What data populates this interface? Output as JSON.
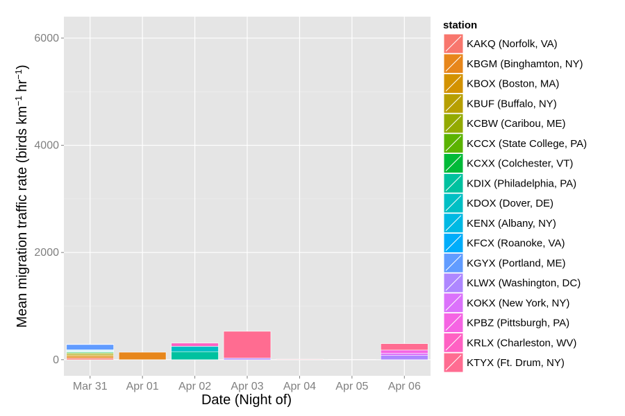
{
  "chart_data": {
    "type": "bar",
    "stacked": true,
    "xlabel": "Date (Night of)",
    "ylabel": {
      "prefix": "Mean migration traffic rate (birds km",
      "sup1": "−1",
      "middle": " hr",
      "sup2": "−1",
      "suffix": ")"
    },
    "ylim": [
      -300,
      6400
    ],
    "yticks": [
      0,
      2000,
      4000,
      6000
    ],
    "grid": true,
    "legend_position": "right",
    "categories": [
      "Mar 31",
      "Apr 01",
      "Apr 02",
      "Apr 03",
      "Apr 04",
      "Apr 05",
      "Apr 06"
    ],
    "legend": {
      "title": "station",
      "entries": [
        {
          "label": "KAKQ (Norfolk, VA)",
          "color": "#F8766D"
        },
        {
          "label": "KBGM (Binghamton, NY)",
          "color": "#E7861B"
        },
        {
          "label": "KBOX (Boston, MA)",
          "color": "#D39200"
        },
        {
          "label": "KBUF (Buffalo, NY)",
          "color": "#B79F00"
        },
        {
          "label": "KCBW (Caribou, ME)",
          "color": "#93AA00"
        },
        {
          "label": "KCCX (State College, PA)",
          "color": "#5BB300"
        },
        {
          "label": "KCXX (Colchester, VT)",
          "color": "#00BA38"
        },
        {
          "label": "KDIX (Philadelphia, PA)",
          "color": "#00C19F"
        },
        {
          "label": "KDOX (Dover, DE)",
          "color": "#00BFC4"
        },
        {
          "label": "KENX (Albany, NY)",
          "color": "#00B9E3"
        },
        {
          "label": "KFCX (Roanoke, VA)",
          "color": "#00ADFA"
        },
        {
          "label": "KGYX (Portland, ME)",
          "color": "#619CFF"
        },
        {
          "label": "KLWX (Washington, DC)",
          "color": "#AE87FF"
        },
        {
          "label": "KOKX (New York, NY)",
          "color": "#DB72FB"
        },
        {
          "label": "KPBZ (Pittsburgh, PA)",
          "color": "#F564E3"
        },
        {
          "label": "KRLX (Charleston, WV)",
          "color": "#FF61C3"
        },
        {
          "label": "KTYX (Ft. Drum, NY)",
          "color": "#FF6C91"
        }
      ]
    },
    "series": [
      {
        "name": "KAKQ (Norfolk, VA)",
        "color": "#F8766D",
        "values": [
          30,
          0,
          0,
          0,
          0,
          0,
          0
        ]
      },
      {
        "name": "KBGM (Binghamton, NY)",
        "color": "#E7861B",
        "values": [
          30,
          140,
          0,
          0,
          0,
          0,
          0
        ]
      },
      {
        "name": "KBOX (Boston, MA)",
        "color": "#D39200",
        "values": [
          20,
          0,
          0,
          0,
          0,
          0,
          0
        ]
      },
      {
        "name": "KBUF (Buffalo, NY)",
        "color": "#B79F00",
        "values": [
          20,
          0,
          0,
          0,
          0,
          0,
          0
        ]
      },
      {
        "name": "KCBW (Caribou, ME)",
        "color": "#93AA00",
        "values": [
          20,
          0,
          0,
          0,
          0,
          0,
          0
        ]
      },
      {
        "name": "KCCX (State College, PA)",
        "color": "#5BB300",
        "values": [
          10,
          0,
          0,
          0,
          0,
          0,
          0
        ]
      },
      {
        "name": "KCXX (Colchester, VT)",
        "color": "#00BA38",
        "values": [
          15,
          0,
          0,
          0,
          0,
          0,
          0
        ]
      },
      {
        "name": "KDIX (Philadelphia, PA)",
        "color": "#00C19F",
        "values": [
          10,
          0,
          150,
          0,
          0,
          0,
          0
        ]
      },
      {
        "name": "KDOX (Dover, DE)",
        "color": "#00BFC4",
        "values": [
          10,
          0,
          100,
          0,
          0,
          0,
          0
        ]
      },
      {
        "name": "KENX (Albany, NY)",
        "color": "#00B9E3",
        "values": [
          10,
          0,
          0,
          0,
          0,
          0,
          0
        ]
      },
      {
        "name": "KFCX (Roanoke, VA)",
        "color": "#00ADFA",
        "values": [
          10,
          0,
          0,
          0,
          0,
          0,
          0
        ]
      },
      {
        "name": "KGYX (Portland, ME)",
        "color": "#619CFF",
        "values": [
          100,
          0,
          0,
          0,
          0,
          0,
          0
        ]
      },
      {
        "name": "KLWX (Washington, DC)",
        "color": "#AE87FF",
        "values": [
          5,
          0,
          0,
          30,
          0,
          0,
          80
        ]
      },
      {
        "name": "KOKX (New York, NY)",
        "color": "#DB72FB",
        "values": [
          0,
          0,
          0,
          0,
          0,
          0,
          40
        ]
      },
      {
        "name": "KPBZ (Pittsburgh, PA)",
        "color": "#F564E3",
        "values": [
          0,
          0,
          0,
          0,
          0,
          0,
          60
        ]
      },
      {
        "name": "KRLX (Charleston, WV)",
        "color": "#FF61C3",
        "values": [
          0,
          0,
          60,
          0,
          0,
          0,
          0
        ]
      },
      {
        "name": "KTYX (Ft. Drum, NY)",
        "color": "#FF6C91",
        "values": [
          0,
          0,
          0,
          500,
          10,
          5,
          120
        ]
      }
    ]
  }
}
